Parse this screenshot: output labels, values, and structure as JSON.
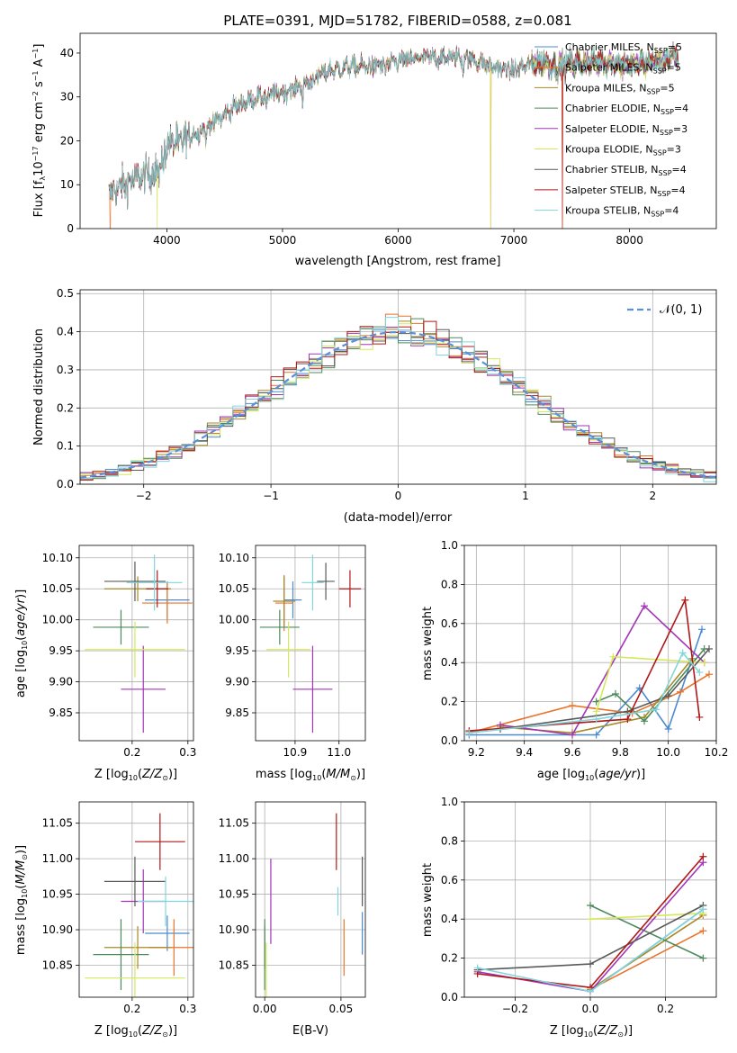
{
  "chart_data": [
    {
      "type": "line",
      "title": "PLATE=0391, MJD=51782, FIBERID=0588, z=0.081",
      "xlabel": "wavelength [Angstrom, rest frame]",
      "ylabel": "Flux [fλ10⁻¹⁷ erg cm⁻² s⁻¹ A⁻¹]",
      "xlim": [
        3250,
        8750
      ],
      "ylim": [
        0,
        44.5
      ],
      "xticks": [
        4000,
        5000,
        6000,
        7000,
        8000
      ],
      "yticks": [
        0,
        10,
        20,
        30,
        40
      ],
      "grid": false,
      "legend_position": "upper right",
      "spectrum_anchor_wavelength": [
        3500,
        3700,
        3900,
        4000,
        4200,
        4400,
        4600,
        4800,
        5000,
        5200,
        5400,
        5600,
        5800,
        6000,
        6200,
        6400,
        6600,
        6800,
        7000,
        7200,
        7400,
        7600,
        7800,
        8000,
        8200,
        8400
      ],
      "spectrum_anchor_flux": [
        8,
        11,
        13,
        19,
        21,
        24,
        28,
        30,
        31,
        33,
        36,
        37,
        37,
        38,
        39,
        39,
        39,
        37,
        36,
        38,
        37,
        38,
        38,
        37,
        38,
        39
      ],
      "series": [
        {
          "name": "Chabrier MILES, N_SSP=5",
          "color": "#4b8bd0"
        },
        {
          "name": "Salpeter MILES, N_SSP=5",
          "color": "#e8742a"
        },
        {
          "name": "Kroupa MILES, N_SSP=5",
          "color": "#a8892a"
        },
        {
          "name": "Chabrier ELODIE, N_SSP=4",
          "color": "#4c8a5c"
        },
        {
          "name": "Salpeter ELODIE, N_SSP=3",
          "color": "#a335b8"
        },
        {
          "name": "Kroupa ELODIE, N_SSP=3",
          "color": "#d6e85a"
        },
        {
          "name": "Chabrier STELIB, N_SSP=4",
          "color": "#5a5a5a"
        },
        {
          "name": "Salpeter STELIB, N_SSP=4",
          "color": "#b01818"
        },
        {
          "name": "Kroupa STELIB, N_SSP=4",
          "color": "#80d6dc"
        }
      ],
      "dropouts": [
        {
          "series": "Kroupa ELODIE, N_SSP=3",
          "wavelength": 3915
        },
        {
          "series": "Kroupa ELODIE, N_SSP=3",
          "wavelength": 6800
        },
        {
          "series": "Salpeter MILES, N_SSP=5",
          "wavelength": 6800
        },
        {
          "series": "Salpeter STELIB, N_SSP=4",
          "wavelength": 7420
        },
        {
          "series": "Salpeter MILES, N_SSP=5",
          "wavelength": 7420
        },
        {
          "series": "Salpeter MILES, N_SSP=5",
          "wavelength": 3510
        }
      ]
    },
    {
      "type": "histogram",
      "xlabel": "(data-model)/error",
      "ylabel": "Normed distribution",
      "xlim": [
        -2.5,
        2.5
      ],
      "ylim": [
        0,
        0.51
      ],
      "xticks": [
        -2,
        -1,
        0,
        1,
        2
      ],
      "yticks": [
        0.0,
        0.1,
        0.2,
        0.3,
        0.4,
        0.5
      ],
      "grid": true,
      "legend_position": "upper right",
      "reference_curve": {
        "name": "𝒩(0, 1)",
        "style": "dashed",
        "color": "#5b8fd9"
      },
      "bin_width": 0.1,
      "bin_left_edges_from": -2.5
    },
    {
      "type": "scatter",
      "xlabel": "Z [log10(Z/Z⊙)]",
      "ylabel": "age  [log10(age/yr)]",
      "xlim": [
        0.105,
        0.31
      ],
      "ylim": [
        9.805,
        10.12
      ],
      "xticks": [
        0.2,
        0.3
      ],
      "yticks": [
        9.85,
        9.9,
        9.95,
        10.0,
        10.05,
        10.1
      ],
      "grid": true,
      "points": [
        {
          "series": "Chabrier MILES, N_SSP=5",
          "x": 0.263,
          "y": 10.032,
          "xerr": 0.04,
          "yerr": 0.03
        },
        {
          "series": "Salpeter MILES, N_SSP=5",
          "x": 0.263,
          "y": 10.027,
          "xerr": 0.045,
          "yerr": 0.033
        },
        {
          "series": "Kroupa MILES, N_SSP=5",
          "x": 0.21,
          "y": 10.05,
          "xerr": 0.06,
          "yerr": 0.02
        },
        {
          "series": "Chabrier ELODIE, N_SSP=4",
          "x": 0.18,
          "y": 9.988,
          "xerr": 0.05,
          "yerr": 0.028
        },
        {
          "series": "Salpeter ELODIE, N_SSP=3",
          "x": 0.22,
          "y": 9.888,
          "xerr": 0.04,
          "yerr": 0.07
        },
        {
          "series": "Kroupa ELODIE, N_SSP=3",
          "x": 0.205,
          "y": 9.952,
          "xerr": 0.09,
          "yerr": 0.045
        },
        {
          "series": "Chabrier STELIB, N_SSP=4",
          "x": 0.205,
          "y": 10.062,
          "xerr": 0.055,
          "yerr": 0.032
        },
        {
          "series": "Salpeter STELIB, N_SSP=4",
          "x": 0.245,
          "y": 10.05,
          "xerr": 0.02,
          "yerr": 0.03
        },
        {
          "series": "Kroupa STELIB, N_SSP=4",
          "x": 0.24,
          "y": 10.06,
          "xerr": 0.05,
          "yerr": 0.045
        }
      ]
    },
    {
      "type": "scatter",
      "xlabel": "mass [log10(M/M⊙)]",
      "ylabel": "",
      "xlim": [
        10.81,
        11.06
      ],
      "ylim": [
        9.805,
        10.12
      ],
      "xticks": [
        10.9,
        11.0
      ],
      "yticks": [
        9.85,
        9.9,
        9.95,
        10.0,
        10.05,
        10.1
      ],
      "grid": true,
      "points": [
        {
          "series": "Chabrier MILES, N_SSP=5",
          "x": 10.895,
          "y": 10.032,
          "xerr": 0.02,
          "yerr": 0.03
        },
        {
          "series": "Salpeter MILES, N_SSP=5",
          "x": 10.875,
          "y": 10.027,
          "xerr": 0.02,
          "yerr": 0.045
        },
        {
          "series": "Kroupa MILES, N_SSP=5",
          "x": 10.875,
          "y": 10.03,
          "xerr": 0.025,
          "yerr": 0.04
        },
        {
          "series": "Chabrier ELODIE, N_SSP=4",
          "x": 10.865,
          "y": 9.988,
          "xerr": 0.045,
          "yerr": 0.028
        },
        {
          "series": "Salpeter ELODIE, N_SSP=3",
          "x": 10.94,
          "y": 9.888,
          "xerr": 0.045,
          "yerr": 0.07
        },
        {
          "series": "Kroupa ELODIE, N_SSP=3",
          "x": 10.885,
          "y": 9.952,
          "xerr": 0.05,
          "yerr": 0.045
        },
        {
          "series": "Chabrier STELIB, N_SSP=4",
          "x": 10.97,
          "y": 10.062,
          "xerr": 0.02,
          "yerr": 0.03
        },
        {
          "series": "Salpeter STELIB, N_SSP=4",
          "x": 11.025,
          "y": 10.05,
          "xerr": 0.025,
          "yerr": 0.03
        },
        {
          "series": "Kroupa STELIB, N_SSP=4",
          "x": 10.94,
          "y": 10.06,
          "xerr": 0.025,
          "yerr": 0.045
        }
      ]
    },
    {
      "type": "line",
      "xlabel": "age  [log10(age/yr)]",
      "ylabel": "mass weight",
      "xlim": [
        9.15,
        10.2
      ],
      "ylim": [
        0,
        1.0
      ],
      "xticks": [
        9.2,
        9.4,
        9.6,
        9.8,
        10.0,
        10.2
      ],
      "yticks": [
        0.0,
        0.2,
        0.4,
        0.6,
        0.8,
        1.0
      ],
      "grid": true,
      "series": [
        {
          "name": "Chabrier MILES, N_SSP=5",
          "x": [
            9.17,
            9.7,
            9.88,
            10.0,
            10.14
          ],
          "y": [
            0.03,
            0.03,
            0.27,
            0.06,
            0.57
          ]
        },
        {
          "name": "Salpeter MILES, N_SSP=5",
          "x": [
            9.17,
            9.6,
            9.85,
            10.05,
            10.17
          ],
          "y": [
            0.04,
            0.18,
            0.14,
            0.25,
            0.34
          ]
        },
        {
          "name": "Kroupa MILES, N_SSP=5",
          "x": [
            9.3,
            9.6,
            9.9,
            10.1
          ],
          "y": [
            0.07,
            0.04,
            0.12,
            0.42
          ]
        },
        {
          "name": "Chabrier ELODIE, N_SSP=4",
          "x": [
            9.7,
            9.78,
            9.9,
            10.15
          ],
          "y": [
            0.2,
            0.24,
            0.1,
            0.47
          ]
        },
        {
          "name": "Salpeter ELODIE, N_SSP=3",
          "x": [
            9.3,
            9.6,
            9.9,
            10.15
          ],
          "y": [
            0.08,
            0.03,
            0.69,
            0.4
          ]
        },
        {
          "name": "Kroupa ELODIE, N_SSP=3",
          "x": [
            9.7,
            9.77,
            10.15
          ],
          "y": [
            0.15,
            0.43,
            0.4
          ]
        },
        {
          "name": "Chabrier STELIB, N_SSP=4",
          "x": [
            9.3,
            9.83,
            10.0,
            10.17
          ],
          "y": [
            0.06,
            0.15,
            0.23,
            0.47
          ]
        },
        {
          "name": "Salpeter STELIB, N_SSP=4",
          "x": [
            9.17,
            9.83,
            10.07,
            10.13
          ],
          "y": [
            0.05,
            0.11,
            0.72,
            0.12
          ]
        },
        {
          "name": "Kroupa STELIB, N_SSP=4",
          "x": [
            9.17,
            9.7,
            9.95,
            10.06,
            10.13
          ],
          "y": [
            0.04,
            0.11,
            0.16,
            0.45,
            0.35
          ]
        }
      ]
    },
    {
      "type": "scatter",
      "xlabel": "Z [log10(Z/Z⊙)]",
      "ylabel": "mass [log10(M/M⊙)]",
      "xlim": [
        0.105,
        0.31
      ],
      "ylim": [
        10.805,
        11.08
      ],
      "xticks": [
        0.2,
        0.3
      ],
      "yticks": [
        10.85,
        10.9,
        10.95,
        11.0,
        11.05
      ],
      "grid": true,
      "points": [
        {
          "series": "Chabrier MILES, N_SSP=5",
          "x": 0.263,
          "y": 10.895,
          "xerr": 0.04,
          "yerr": 0.025
        },
        {
          "series": "Salpeter MILES, N_SSP=5",
          "x": 0.275,
          "y": 10.875,
          "xerr": 0.045,
          "yerr": 0.04
        },
        {
          "series": "Kroupa MILES, N_SSP=5",
          "x": 0.21,
          "y": 10.875,
          "xerr": 0.06,
          "yerr": 0.03
        },
        {
          "series": "Chabrier ELODIE, N_SSP=4",
          "x": 0.18,
          "y": 10.865,
          "xerr": 0.05,
          "yerr": 0.05
        },
        {
          "series": "Salpeter ELODIE, N_SSP=3",
          "x": 0.22,
          "y": 10.94,
          "xerr": 0.04,
          "yerr": 0.045
        },
        {
          "series": "Kroupa ELODIE, N_SSP=3",
          "x": 0.205,
          "y": 10.832,
          "xerr": 0.09,
          "yerr": 0.05
        },
        {
          "series": "Chabrier STELIB, N_SSP=4",
          "x": 0.205,
          "y": 10.968,
          "xerr": 0.055,
          "yerr": 0.035
        },
        {
          "series": "Salpeter STELIB, N_SSP=4",
          "x": 0.25,
          "y": 11.024,
          "xerr": 0.045,
          "yerr": 0.04
        },
        {
          "series": "Kroupa STELIB, N_SSP=4",
          "x": 0.26,
          "y": 10.94,
          "xerr": 0.05,
          "yerr": 0.035
        }
      ]
    },
    {
      "type": "scatter",
      "xlabel": "E(B-V)",
      "ylabel": "",
      "xlim": [
        -0.006,
        0.066
      ],
      "ylim": [
        10.805,
        11.08
      ],
      "xticks": [
        0.0,
        0.05
      ],
      "yticks": [
        10.85,
        10.9,
        10.95,
        11.0,
        11.05
      ],
      "grid": true,
      "points": [
        {
          "series": "Chabrier MILES, N_SSP=5",
          "x": 0.064,
          "y": 10.895,
          "yerr": 0.03
        },
        {
          "series": "Salpeter MILES, N_SSP=5",
          "x": 0.052,
          "y": 10.875,
          "yerr": 0.04
        },
        {
          "series": "Kroupa MILES, N_SSP=5",
          "x": 0.0,
          "y": 10.875,
          "yerr": 0.03
        },
        {
          "series": "Chabrier ELODIE, N_SSP=4",
          "x": 0.0,
          "y": 10.865,
          "yerr": 0.05
        },
        {
          "series": "Salpeter ELODIE, N_SSP=3",
          "x": 0.004,
          "y": 10.94,
          "yerr": 0.06
        },
        {
          "series": "Kroupa ELODIE, N_SSP=3",
          "x": 0.001,
          "y": 10.832,
          "yerr": 0.05
        },
        {
          "series": "Chabrier STELIB, N_SSP=4",
          "x": 0.064,
          "y": 10.968,
          "yerr": 0.035
        },
        {
          "series": "Salpeter STELIB, N_SSP=4",
          "x": 0.047,
          "y": 11.024,
          "yerr": 0.04
        },
        {
          "series": "Kroupa STELIB, N_SSP=4",
          "x": 0.048,
          "y": 10.94,
          "yerr": 0.02
        }
      ]
    },
    {
      "type": "line",
      "xlabel": "Z [log10(Z/Z⊙)]",
      "ylabel": "mass weight",
      "xlim": [
        -0.335,
        0.335
      ],
      "ylim": [
        0,
        1.0
      ],
      "xticks": [
        -0.2,
        0.0,
        0.2
      ],
      "yticks": [
        0.0,
        0.2,
        0.4,
        0.6,
        0.8,
        1.0
      ],
      "grid": true,
      "series": [
        {
          "name": "Chabrier MILES, N_SSP=5",
          "x": [
            0.0,
            0.3
          ],
          "y": [
            0.03,
            0.45
          ]
        },
        {
          "name": "Salpeter MILES, N_SSP=5",
          "x": [
            0.0,
            0.3
          ],
          "y": [
            0.04,
            0.34
          ]
        },
        {
          "name": "Kroupa MILES, N_SSP=5",
          "x": [
            0.0,
            0.3
          ],
          "y": [
            0.04,
            0.42
          ]
        },
        {
          "name": "Chabrier ELODIE, N_SSP=4",
          "x": [
            0.0,
            0.3
          ],
          "y": [
            0.47,
            0.2
          ]
        },
        {
          "name": "Salpeter ELODIE, N_SSP=3",
          "x": [
            -0.3,
            0.0,
            0.3
          ],
          "y": [
            0.13,
            0.03,
            0.69
          ]
        },
        {
          "name": "Kroupa ELODIE, N_SSP=3",
          "x": [
            0.0,
            0.3
          ],
          "y": [
            0.4,
            0.43
          ]
        },
        {
          "name": "Chabrier STELIB, N_SSP=4",
          "x": [
            -0.3,
            0.0,
            0.3
          ],
          "y": [
            0.14,
            0.17,
            0.47
          ]
        },
        {
          "name": "Salpeter STELIB, N_SSP=4",
          "x": [
            -0.3,
            0.0,
            0.3
          ],
          "y": [
            0.12,
            0.05,
            0.72
          ]
        },
        {
          "name": "Kroupa STELIB, N_SSP=4",
          "x": [
            -0.3,
            0.0,
            0.3
          ],
          "y": [
            0.15,
            0.03,
            0.45
          ]
        }
      ]
    }
  ]
}
